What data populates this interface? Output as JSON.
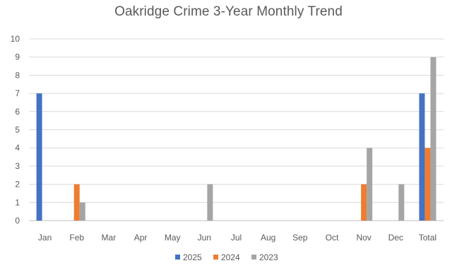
{
  "chart_data": {
    "type": "bar",
    "title": "Oakridge Crime 3-Year Monthly Trend",
    "xlabel": "",
    "ylabel": "",
    "categories": [
      "Jan",
      "Feb",
      "Mar",
      "Apr",
      "May",
      "Jun",
      "Jul",
      "Aug",
      "Sep",
      "Oct",
      "Nov",
      "Dec",
      "Total"
    ],
    "series": [
      {
        "name": "2025",
        "color": "#4472C4",
        "values": [
          7,
          0,
          0,
          0,
          0,
          0,
          0,
          0,
          0,
          0,
          0,
          0,
          7
        ]
      },
      {
        "name": "2024",
        "color": "#ED7D31",
        "values": [
          0,
          2,
          0,
          0,
          0,
          0,
          0,
          0,
          0,
          0,
          2,
          0,
          4
        ]
      },
      {
        "name": "2023",
        "color": "#A5A5A5",
        "values": [
          0,
          1,
          0,
          0,
          0,
          2,
          0,
          0,
          0,
          0,
          4,
          2,
          9
        ]
      }
    ],
    "ylim": [
      0,
      10
    ],
    "yticks": [
      0,
      1,
      2,
      3,
      4,
      5,
      6,
      7,
      8,
      9,
      10
    ],
    "grid": true,
    "legend_position": "bottom"
  }
}
